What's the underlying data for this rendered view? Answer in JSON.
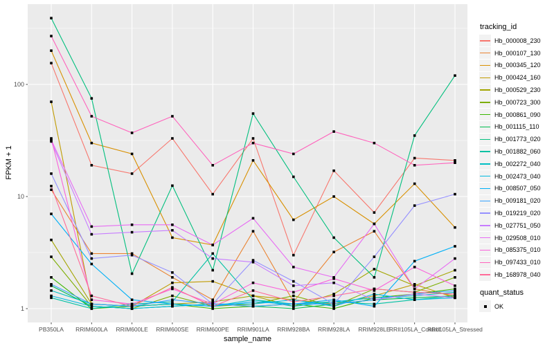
{
  "legend": {
    "tracking_title": "tracking_id",
    "quant_title": "quant_status",
    "quant_items": [
      "OK"
    ]
  },
  "axes": {
    "x_title": "sample_name",
    "y_title": "FPKM + 1"
  },
  "chart_data": {
    "type": "line",
    "title": "",
    "xlabel": "sample_name",
    "ylabel": "FPKM + 1",
    "y_scale": "log10",
    "y_ticks": [
      1,
      10,
      100
    ],
    "y_minor_ticks": [
      3.162,
      31.62,
      316.2
    ],
    "ylim": [
      0.72,
      520
    ],
    "grid": true,
    "legend_position": "right",
    "panel_background": "#EBEBEB",
    "gridline_color": "#FFFFFF",
    "marker": "black-square",
    "quant_status": {
      "title": "quant_status",
      "items": [
        "OK"
      ]
    },
    "categories": [
      "PB350LA",
      "RRIM600LA",
      "RRIM600LE",
      "RRIM600SE",
      "RRIM600PE",
      "RRIM901LA",
      "RRIM928BA",
      "RRIM928LA",
      "RRIM928LE",
      "RRII105LA_Control",
      "RRII105LA_Stressed"
    ],
    "series": [
      {
        "name": "Hb_000008_230",
        "color": "#F8766D",
        "values": [
          155,
          19,
          16,
          33,
          10.5,
          33,
          3.0,
          17,
          7.2,
          22,
          21
        ]
      },
      {
        "name": "Hb_000107_130",
        "color": "#EA8331",
        "values": [
          11.5,
          3.1,
          3.1,
          1.9,
          1.2,
          4.9,
          1.15,
          3.2,
          4.9,
          1.5,
          1.3
        ]
      },
      {
        "name": "Hb_000345_120",
        "color": "#D89000",
        "values": [
          200,
          30,
          24,
          4.3,
          3.7,
          21,
          6.2,
          10,
          5.7,
          13,
          5.3
        ]
      },
      {
        "name": "Hb_000424_160",
        "color": "#C09B00",
        "values": [
          70,
          1.1,
          1.05,
          1.7,
          1.75,
          1.3,
          1.2,
          1.1,
          1.3,
          1.65,
          1.25
        ]
      },
      {
        "name": "Hb_000529_230",
        "color": "#A3A500",
        "values": [
          4.1,
          1.1,
          1.05,
          1.1,
          1.15,
          1.3,
          1.05,
          1.35,
          2.25,
          1.6,
          2.2
        ]
      },
      {
        "name": "Hb_000723_300",
        "color": "#7CAE00",
        "values": [
          2.9,
          1.05,
          1.0,
          1.3,
          1.05,
          1.1,
          1.3,
          1.05,
          1.5,
          1.4,
          1.9
        ]
      },
      {
        "name": "Hb_000861_090",
        "color": "#39B600",
        "values": [
          1.9,
          1.0,
          1.05,
          1.1,
          1.0,
          1.05,
          1.1,
          1.0,
          1.25,
          1.35,
          1.5
        ]
      },
      {
        "name": "Hb_001115_110",
        "color": "#00BB4E",
        "values": [
          1.6,
          1.05,
          1.0,
          1.05,
          1.1,
          1.05,
          1.0,
          1.1,
          1.2,
          1.25,
          1.3
        ]
      },
      {
        "name": "Hb_001773_020",
        "color": "#00BF7D",
        "values": [
          390,
          75,
          2.05,
          12.5,
          2.2,
          55,
          15,
          4.3,
          1.9,
          35,
          120
        ]
      },
      {
        "name": "Hb_001882_060",
        "color": "#00C1A3",
        "values": [
          1.25,
          1.0,
          1.1,
          1.15,
          3.1,
          1.2,
          1.1,
          1.15,
          1.1,
          1.2,
          1.3
        ]
      },
      {
        "name": "Hb_002272_040",
        "color": "#00BFC4",
        "values": [
          1.45,
          1.1,
          1.05,
          1.1,
          1.05,
          1.2,
          1.05,
          1.15,
          1.25,
          1.3,
          1.4
        ]
      },
      {
        "name": "Hb_002473_040",
        "color": "#00BAE0",
        "values": [
          1.3,
          1.05,
          1.0,
          1.05,
          1.1,
          1.1,
          1.2,
          1.05,
          1.35,
          1.2,
          1.25
        ]
      },
      {
        "name": "Hb_008507_050",
        "color": "#00B0F6",
        "values": [
          7.0,
          2.5,
          1.2,
          1.1,
          1.05,
          1.15,
          1.1,
          1.2,
          1.05,
          2.65,
          3.6
        ]
      },
      {
        "name": "Hb_009181_020",
        "color": "#35A2FF",
        "values": [
          1.65,
          1.1,
          1.05,
          1.2,
          1.1,
          1.05,
          1.1,
          1.1,
          1.2,
          1.35,
          1.45
        ]
      },
      {
        "name": "Hb_019219_020",
        "color": "#9590FF",
        "values": [
          16,
          2.8,
          3.0,
          2.1,
          1.1,
          2.7,
          1.75,
          1.1,
          2.9,
          8.3,
          10.5
        ]
      },
      {
        "name": "Hb_027751_050",
        "color": "#C77CFF",
        "values": [
          31,
          4.6,
          4.8,
          5.0,
          2.8,
          2.6,
          1.6,
          1.7,
          1.2,
          1.35,
          1.25
        ]
      },
      {
        "name": "Hb_029508_010",
        "color": "#E76BF3",
        "values": [
          32,
          5.4,
          5.6,
          5.6,
          3.7,
          6.4,
          2.35,
          1.9,
          5.7,
          1.5,
          2.8
        ]
      },
      {
        "name": "Hb_085375_010",
        "color": "#FA62DB",
        "values": [
          33,
          1.2,
          1.1,
          1.5,
          1.1,
          1.7,
          1.4,
          1.85,
          1.45,
          2.35,
          1.6
        ]
      },
      {
        "name": "Hb_097433_010",
        "color": "#FF62BC",
        "values": [
          270,
          52,
          37,
          52,
          19,
          30,
          24,
          38,
          30,
          19,
          20
        ]
      },
      {
        "name": "Hb_168978_040",
        "color": "#FF6A98",
        "values": [
          12.4,
          1.3,
          1.05,
          1.55,
          1.05,
          1.45,
          1.15,
          1.3,
          1.5,
          1.4,
          1.35
        ]
      }
    ]
  }
}
